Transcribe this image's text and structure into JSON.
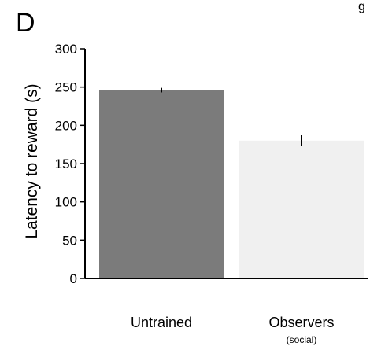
{
  "panel_letter": "D",
  "top_fragment": "g",
  "chart_data": {
    "type": "bar",
    "categories": [
      "Untrained",
      "Observers"
    ],
    "category_sublabels": [
      "",
      "(social)"
    ],
    "values": [
      246,
      180
    ],
    "errors": [
      3,
      7
    ],
    "colors": [
      "#7b7b7b",
      "#f0f0f0"
    ],
    "ylabel": "Latency to reward (s)",
    "xlabel": "",
    "ylim": [
      0,
      300
    ],
    "yticks": [
      0,
      50,
      100,
      150,
      200,
      250,
      300
    ],
    "grid": false
  }
}
